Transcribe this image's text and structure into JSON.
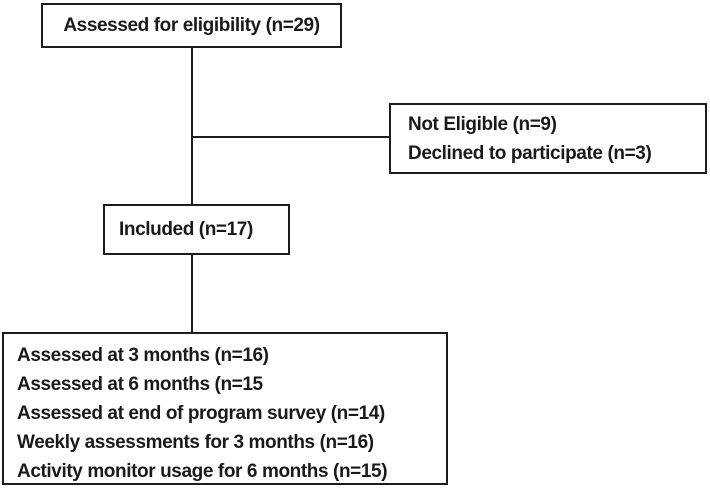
{
  "diagram": {
    "colors": {
      "line": "#1c1c1c",
      "box_bg": "#ffffff",
      "text": "#1a1a1a"
    },
    "boxes": {
      "eligibility": {
        "label": "Assessed for eligibility (n=29)"
      },
      "exclusions": {
        "lines": [
          "Not Eligible (n=9)",
          "Declined to participate (n=3)"
        ]
      },
      "included": {
        "label": "Included (n=17)"
      },
      "outcomes": {
        "lines": [
          "Assessed at 3 months (n=16)",
          "Assessed at 6 months (n=15",
          "Assessed at end of program survey (n=14)",
          "Weekly assessments for 3 months (n=16)",
          "Activity monitor usage for 6 months (n=15)"
        ]
      }
    }
  }
}
